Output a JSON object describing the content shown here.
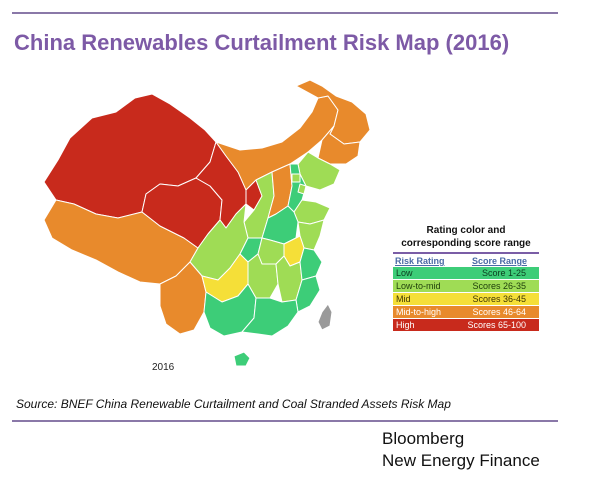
{
  "title": "China Renewables Curtailment Risk Map (2016)",
  "map": {
    "year_label": "2016",
    "regions": [
      {
        "id": "heilongjiang",
        "rating": "Mid-to-high"
      },
      {
        "id": "inner-mongolia",
        "rating": "Mid-to-high"
      },
      {
        "id": "jilin",
        "rating": "Mid-to-high"
      },
      {
        "id": "liaoning",
        "rating": "Low-to-mid"
      },
      {
        "id": "xinjiang",
        "rating": "High"
      },
      {
        "id": "tibet",
        "rating": "Mid-to-high"
      },
      {
        "id": "qinghai",
        "rating": "High"
      },
      {
        "id": "gansu",
        "rating": "High"
      },
      {
        "id": "ningxia",
        "rating": "High"
      },
      {
        "id": "shaanxi",
        "rating": "Low-to-mid"
      },
      {
        "id": "shanxi",
        "rating": "Mid-to-high"
      },
      {
        "id": "hebei",
        "rating": "Low"
      },
      {
        "id": "beijing",
        "rating": "Low-to-mid"
      },
      {
        "id": "tianjin",
        "rating": "Low-to-mid"
      },
      {
        "id": "shandong",
        "rating": "Low-to-mid"
      },
      {
        "id": "henan",
        "rating": "Low"
      },
      {
        "id": "jiangsu",
        "rating": "Low-to-mid"
      },
      {
        "id": "anhui",
        "rating": "Mid"
      },
      {
        "id": "sichuan",
        "rating": "Low-to-mid"
      },
      {
        "id": "chongqing",
        "rating": "Low"
      },
      {
        "id": "hubei",
        "rating": "Low-to-mid"
      },
      {
        "id": "hunan",
        "rating": "Low-to-mid"
      },
      {
        "id": "jiangxi",
        "rating": "Low-to-mid"
      },
      {
        "id": "zhejiang",
        "rating": "Low"
      },
      {
        "id": "fujian",
        "rating": "Low"
      },
      {
        "id": "yunnan",
        "rating": "Mid-to-high"
      },
      {
        "id": "guizhou",
        "rating": "Mid"
      },
      {
        "id": "guangxi",
        "rating": "Low"
      },
      {
        "id": "guangdong",
        "rating": "Low"
      },
      {
        "id": "hainan",
        "rating": "Low"
      },
      {
        "id": "taiwan",
        "rating": "No data"
      }
    ],
    "no_data_color": "#9a9a9a"
  },
  "legend": {
    "title_line1": "Rating color and",
    "title_line2": "corresponding score range",
    "header_rating": "Risk Rating",
    "header_range": "Score Range",
    "rows": [
      {
        "rating": "Low",
        "range": "Score 1-25",
        "color": "#3dcd78",
        "text_color": "#0b3d1f"
      },
      {
        "rating": "Low-to-mid",
        "range": "Scores 26-35",
        "color": "#9fdc55",
        "text_color": "#1e3d0b"
      },
      {
        "rating": "Mid",
        "range": "Scores 36-45",
        "color": "#f5df38",
        "text_color": "#3d3505"
      },
      {
        "rating": "Mid-to-high",
        "range": "Scores 46-64",
        "color": "#e88a2c",
        "text_color": "#ffffff"
      },
      {
        "rating": "High",
        "range": "Scores 65-100",
        "color": "#c82a1c",
        "text_color": "#ffffff"
      }
    ]
  },
  "source": "Source: BNEF China Renewable Curtailment and Coal Stranded Assets Risk Map",
  "brand": {
    "line1": "Bloomberg",
    "line2": "New Energy Finance"
  },
  "colors": {
    "title": "#7d5aa6",
    "rule": "#8a78a8"
  }
}
